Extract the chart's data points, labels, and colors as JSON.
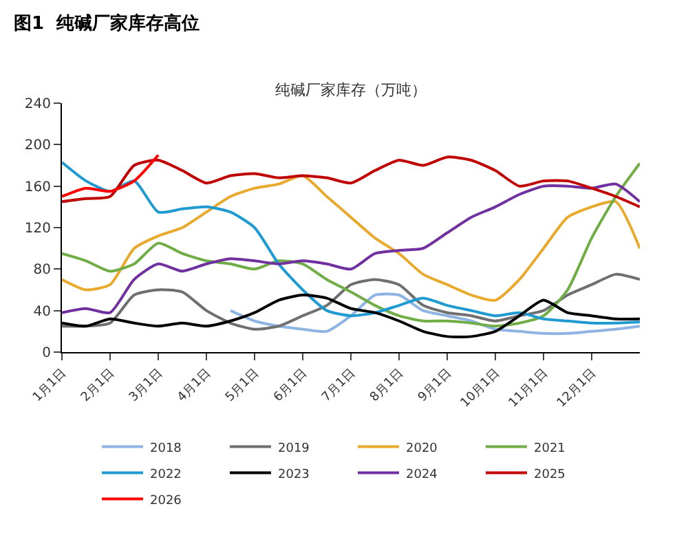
{
  "chart_data": {
    "type": "line",
    "title": "图1  纯碱厂家库存高位",
    "subtitle": "纯碱厂家库存（万吨）",
    "categories": [
      "1月1日",
      null,
      "2月1日",
      null,
      "3月1日",
      null,
      "4月1日",
      null,
      "5月1日",
      null,
      "6月1日",
      null,
      "7月1日",
      null,
      "8月1日",
      null,
      "9月1日",
      null,
      "10月1日",
      null,
      "11月1日",
      null,
      "12月1日",
      null,
      null
    ],
    "ylim": [
      0,
      240
    ],
    "yticks": [
      0,
      40,
      80,
      120,
      160,
      200,
      240
    ],
    "legend": "bottom",
    "marker": "none",
    "line_style": "solid",
    "series": [
      {
        "name": "2018",
        "color": "#8eb4e3",
        "values": [
          null,
          null,
          null,
          null,
          null,
          null,
          null,
          40,
          30,
          25,
          22,
          20,
          35,
          55,
          55,
          40,
          35,
          30,
          22,
          20,
          18,
          18,
          20,
          22,
          25
        ]
      },
      {
        "name": "2019",
        "color": "#6f6f6f",
        "values": [
          25,
          25,
          28,
          55,
          60,
          58,
          40,
          28,
          22,
          25,
          35,
          45,
          65,
          70,
          65,
          45,
          38,
          35,
          30,
          35,
          40,
          55,
          65,
          75,
          70
        ]
      },
      {
        "name": "2020",
        "color": "#e8a92c",
        "values": [
          70,
          60,
          65,
          100,
          112,
          120,
          135,
          150,
          158,
          162,
          170,
          150,
          130,
          110,
          95,
          75,
          65,
          55,
          50,
          70,
          100,
          130,
          140,
          145,
          100
        ]
      },
      {
        "name": "2021",
        "color": "#70ad47",
        "values": [
          95,
          88,
          78,
          85,
          105,
          95,
          88,
          85,
          80,
          88,
          85,
          70,
          58,
          45,
          35,
          30,
          30,
          28,
          25,
          28,
          35,
          60,
          110,
          150,
          182
        ]
      },
      {
        "name": "2022",
        "color": "#1f9bd1",
        "values": [
          183,
          165,
          155,
          165,
          135,
          138,
          140,
          135,
          120,
          85,
          60,
          40,
          35,
          38,
          45,
          52,
          45,
          40,
          35,
          38,
          32,
          30,
          28,
          28,
          29
        ]
      },
      {
        "name": "2023",
        "color": "#000000",
        "values": [
          28,
          25,
          32,
          28,
          25,
          28,
          25,
          30,
          38,
          50,
          55,
          52,
          42,
          38,
          30,
          20,
          15,
          15,
          20,
          35,
          50,
          38,
          35,
          32,
          32
        ]
      },
      {
        "name": "2024",
        "color": "#7030a0",
        "values": [
          38,
          42,
          38,
          70,
          85,
          78,
          85,
          90,
          88,
          85,
          88,
          85,
          80,
          95,
          98,
          100,
          115,
          130,
          140,
          152,
          160,
          160,
          158,
          162,
          145
        ]
      },
      {
        "name": "2025",
        "color": "#c00000",
        "values": [
          145,
          148,
          150,
          180,
          185,
          175,
          163,
          170,
          172,
          168,
          170,
          168,
          163,
          175,
          185,
          180,
          188,
          185,
          175,
          160,
          165,
          165,
          158,
          150,
          140
        ]
      },
      {
        "name": "2026",
        "color": "#ff0000",
        "values": [
          150,
          158,
          155,
          165,
          190,
          null,
          null,
          null,
          null,
          null,
          null,
          null,
          null,
          null,
          null,
          null,
          null,
          null,
          null,
          null,
          null,
          null,
          null,
          null,
          null
        ]
      }
    ]
  }
}
